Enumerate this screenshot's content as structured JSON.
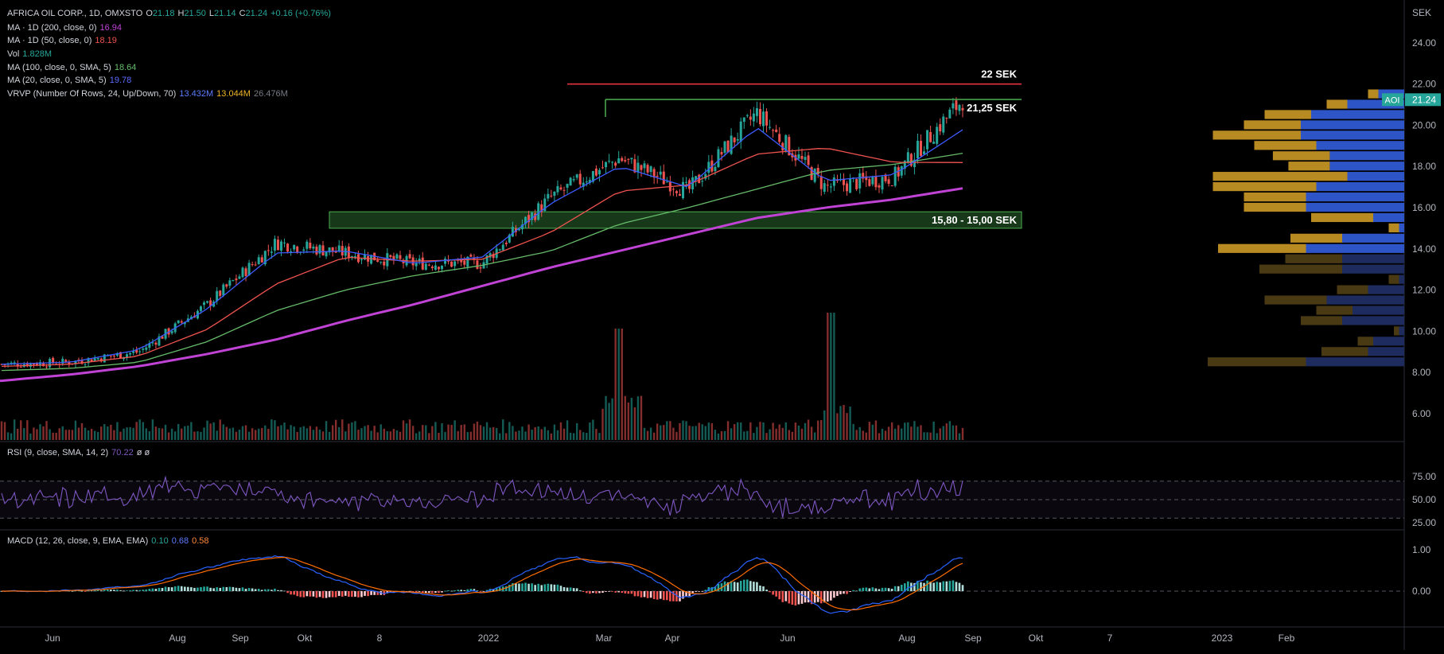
{
  "header": {
    "symbol": "AFRICA OIL CORP., 1D, OMXSTO",
    "ohlc": {
      "o_label": "O",
      "o": "21.18",
      "h_label": "H",
      "h": "21.50",
      "l_label": "L",
      "l": "21.14",
      "c_label": "C",
      "c": "21.24",
      "change": "+0.16 (+0.76%)"
    }
  },
  "indicators": [
    {
      "label": "MA · 1D (200, close, 0)",
      "value": "16.94",
      "color": "#c043d6"
    },
    {
      "label": "MA · 1D (50, close, 0)",
      "value": "18.19",
      "color": "#ef5350"
    },
    {
      "label": "Vol",
      "value": "1.828M",
      "color": "#26a69a"
    },
    {
      "label": "MA (100, close, 0, SMA, 5)",
      "value": "18.64",
      "color": "#66bb6a"
    },
    {
      "label": "MA (20, close, 0, SMA, 5)",
      "value": "19.78",
      "color": "#3d5afe"
    }
  ],
  "vrvp": {
    "label": "VRVP (Number Of Rows, 24, Up/Down, 70)",
    "up": "13.432M",
    "down": "13.044M",
    "total": "26.476M",
    "up_color": "#2962ff",
    "down_color": "#e0a82e"
  },
  "rsi": {
    "label": "RSI (9, close, SMA, 14, 2)",
    "value": "70.22",
    "extra": "ø ø",
    "levels": [
      "75.00",
      "50.00",
      "25.00"
    ]
  },
  "macd": {
    "label": "MACD (12, 26, close, 9, EMA, EMA)",
    "hist": "0.10",
    "macd": "0.68",
    "signal": "0.58",
    "levels": [
      "1.00",
      "0.00"
    ]
  },
  "annotations": {
    "resistance": "22 SEK",
    "neckline": "21,25 SEK",
    "zone": "15,80 - 15,00 SEK"
  },
  "price_axis": {
    "unit": "SEK",
    "ticks": [
      "24.00",
      "22.00",
      "20.00",
      "18.00",
      "16.00",
      "14.00",
      "12.00",
      "10.00",
      "8.00",
      "6.00"
    ],
    "last_tag": "AOI",
    "last": "21.24"
  },
  "time_axis": {
    "labels": [
      "Jun",
      "Aug",
      "Sep",
      "Okt",
      "8",
      "2022",
      "Mar",
      "Apr",
      "Jun",
      "Aug",
      "Sep",
      "Okt",
      "7",
      "2023",
      "Feb"
    ]
  },
  "colors": {
    "up": "#26a69a",
    "down": "#ef5350",
    "ma200": "#c043d6",
    "ma50": "#ef5350",
    "ma100": "#66bb6a",
    "ma20": "#3d5afe",
    "rsi": "#7e57c2",
    "macd": "#2962ff",
    "signal": "#ff6d00",
    "resistance": "#f23645",
    "neckline": "#4caf50",
    "zone": "#4caf50"
  },
  "chart_data": {
    "type": "line",
    "price_series": {
      "x": [
        "2021-06",
        "2021-07",
        "2021-08",
        "2021-09",
        "2021-10",
        "2021-11",
        "2021-12",
        "2022-01",
        "2022-02",
        "2022-03",
        "2022-04",
        "2022-05",
        "2022-06",
        "2022-07",
        "2022-08"
      ],
      "close": [
        8.4,
        8.5,
        9.0,
        11.3,
        14.3,
        13.8,
        13.3,
        13.3,
        16.5,
        18.4,
        16.8,
        20.6,
        17.0,
        17.5,
        21.24
      ],
      "ma200": [
        7.6,
        7.9,
        8.3,
        8.9,
        9.6,
        10.5,
        11.3,
        12.2,
        13.1,
        13.9,
        14.7,
        15.5,
        16.0,
        16.4,
        16.94
      ],
      "ma50": [
        8.3,
        8.4,
        8.8,
        10.1,
        12.3,
        13.6,
        13.4,
        13.5,
        14.8,
        16.8,
        17.1,
        18.6,
        18.9,
        18.2,
        18.19
      ],
      "ma100": [
        8.1,
        8.2,
        8.5,
        9.5,
        11.0,
        12.0,
        12.7,
        13.2,
        13.9,
        15.2,
        16.0,
        16.9,
        17.8,
        18.1,
        18.64
      ],
      "ma20": [
        8.4,
        8.5,
        9.1,
        11.1,
        13.8,
        13.9,
        13.3,
        13.6,
        16.2,
        18.0,
        17.0,
        19.9,
        17.3,
        17.6,
        19.78
      ]
    },
    "levels": {
      "resistance": 22.0,
      "neckline": 21.25,
      "zone": [
        15.0,
        15.8
      ]
    },
    "volume_profile": {
      "price": [
        21.5,
        21.0,
        20.5,
        20.0,
        19.5,
        19.0,
        18.5,
        18.0,
        17.5,
        17.0,
        16.5,
        16.0,
        15.5,
        15.0,
        14.5,
        14.0,
        13.5,
        13.0,
        12.5,
        12.0,
        11.5,
        11.0,
        10.5,
        10.0,
        9.5,
        9.0,
        8.5
      ],
      "up": [
        0.25,
        0.55,
        0.9,
        1.0,
        1.0,
        0.85,
        0.72,
        0.72,
        0.55,
        0.85,
        0.95,
        0.95,
        0.3,
        0.05,
        0.6,
        0.95,
        0.6,
        0.6,
        0.05,
        0.35,
        0.75,
        0.5,
        0.6,
        0.05,
        0.3,
        0.35,
        0.95
      ],
      "down": [
        0.1,
        0.2,
        0.45,
        0.55,
        0.85,
        0.6,
        0.55,
        0.4,
        1.3,
        1.0,
        0.6,
        0.6,
        0.6,
        0.1,
        0.5,
        0.85,
        0.55,
        0.8,
        0.1,
        0.3,
        0.6,
        0.35,
        0.4,
        0.05,
        0.15,
        0.45,
        0.95
      ]
    },
    "rsi": {
      "ylim": [
        20,
        90
      ],
      "levels": [
        30,
        50,
        70
      ]
    },
    "macd": {
      "ylim": [
        -0.9,
        1.4
      ]
    }
  }
}
